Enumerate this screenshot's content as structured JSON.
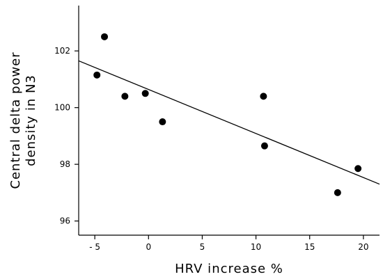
{
  "chart_data": {
    "type": "scatter",
    "xlabel": "HRV increase %",
    "ylabel_lines": [
      "Central delta power",
      "density in N3"
    ],
    "xlim": [
      -6.5,
      21.5
    ],
    "ylim": [
      95.5,
      103.6
    ],
    "x_ticks": [
      -5,
      0,
      5,
      10,
      15,
      20
    ],
    "x_tick_labels": [
      "- 5",
      "0",
      "5",
      "10",
      "15",
      "20"
    ],
    "y_ticks": [
      96,
      98,
      100,
      102
    ],
    "y_tick_labels": [
      "96",
      "98",
      "100",
      "102"
    ],
    "points": [
      {
        "x": -4.8,
        "y": 101.15
      },
      {
        "x": -4.1,
        "y": 102.5
      },
      {
        "x": -2.2,
        "y": 100.4
      },
      {
        "x": -0.3,
        "y": 100.5
      },
      {
        "x": 1.3,
        "y": 99.5
      },
      {
        "x": 10.7,
        "y": 100.4
      },
      {
        "x": 10.8,
        "y": 98.65
      },
      {
        "x": 17.6,
        "y": 97.0
      },
      {
        "x": 19.5,
        "y": 97.85
      }
    ],
    "trendline": {
      "x": [
        -6.5,
        21.5
      ],
      "y": [
        101.65,
        97.3
      ]
    },
    "grid": false,
    "legend": "none"
  }
}
